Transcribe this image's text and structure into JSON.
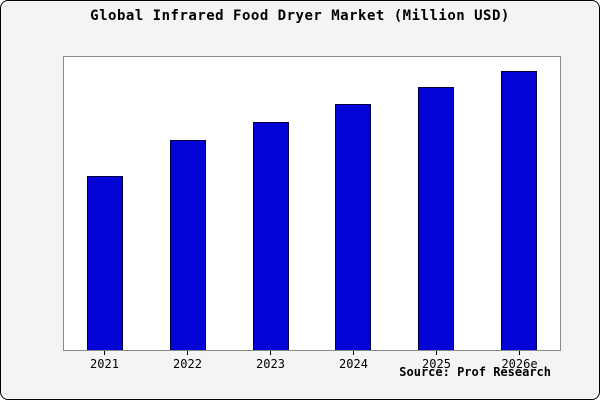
{
  "title": "Global Infrared Food Dryer Market (Million USD)",
  "source": "Source: Prof Research",
  "colors": {
    "bar_fill": "#0404d6",
    "bar_edge": "#000040",
    "frame_background": "#f4f4f4",
    "plot_background": "#ffffff",
    "frame_border": "#000000",
    "plot_border": "#8a8a8a"
  },
  "chart_data": {
    "type": "bar",
    "categories": [
      "2021",
      "2022",
      "2023",
      "2024",
      "2025",
      "2026e"
    ],
    "values": [
      250,
      301,
      327,
      352,
      377,
      400
    ],
    "title": "Global Infrared Food Dryer Market (Million USD)",
    "xlabel": "",
    "ylabel": "",
    "ylim": [
      0,
      420
    ],
    "grid": false,
    "legend": false,
    "source": "Source: Prof Research"
  }
}
